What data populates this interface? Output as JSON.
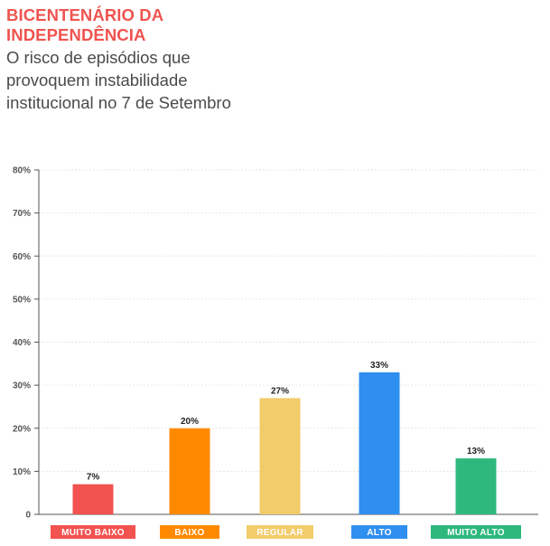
{
  "header": {
    "headline": "BICENTENÁRIO DA INDEPENDÊNCIA",
    "subtitle": "O risco de episódios que provoquem instabilidade institucional no 7 de Setembro"
  },
  "chart_data": {
    "type": "bar",
    "categories": [
      "MUITO BAIXO",
      "BAIXO",
      "REGULAR",
      "ALTO",
      "MUITO ALTO"
    ],
    "values": [
      7,
      20,
      27,
      33,
      13
    ],
    "value_labels": [
      "7%",
      "20%",
      "27%",
      "33%",
      "13%"
    ],
    "colors": [
      "#f25250",
      "#ff8a00",
      "#f2cb6b",
      "#2f8ff0",
      "#2eb87e"
    ],
    "yticks": [
      0,
      10,
      20,
      30,
      40,
      50,
      60,
      70,
      80
    ],
    "ytick_labels": [
      "0",
      "10%",
      "20%",
      "30%",
      "40%",
      "50%",
      "60%",
      "70%",
      "80%"
    ],
    "ylim": [
      0,
      80
    ],
    "grid": true,
    "title": "",
    "xlabel": "",
    "ylabel": ""
  }
}
